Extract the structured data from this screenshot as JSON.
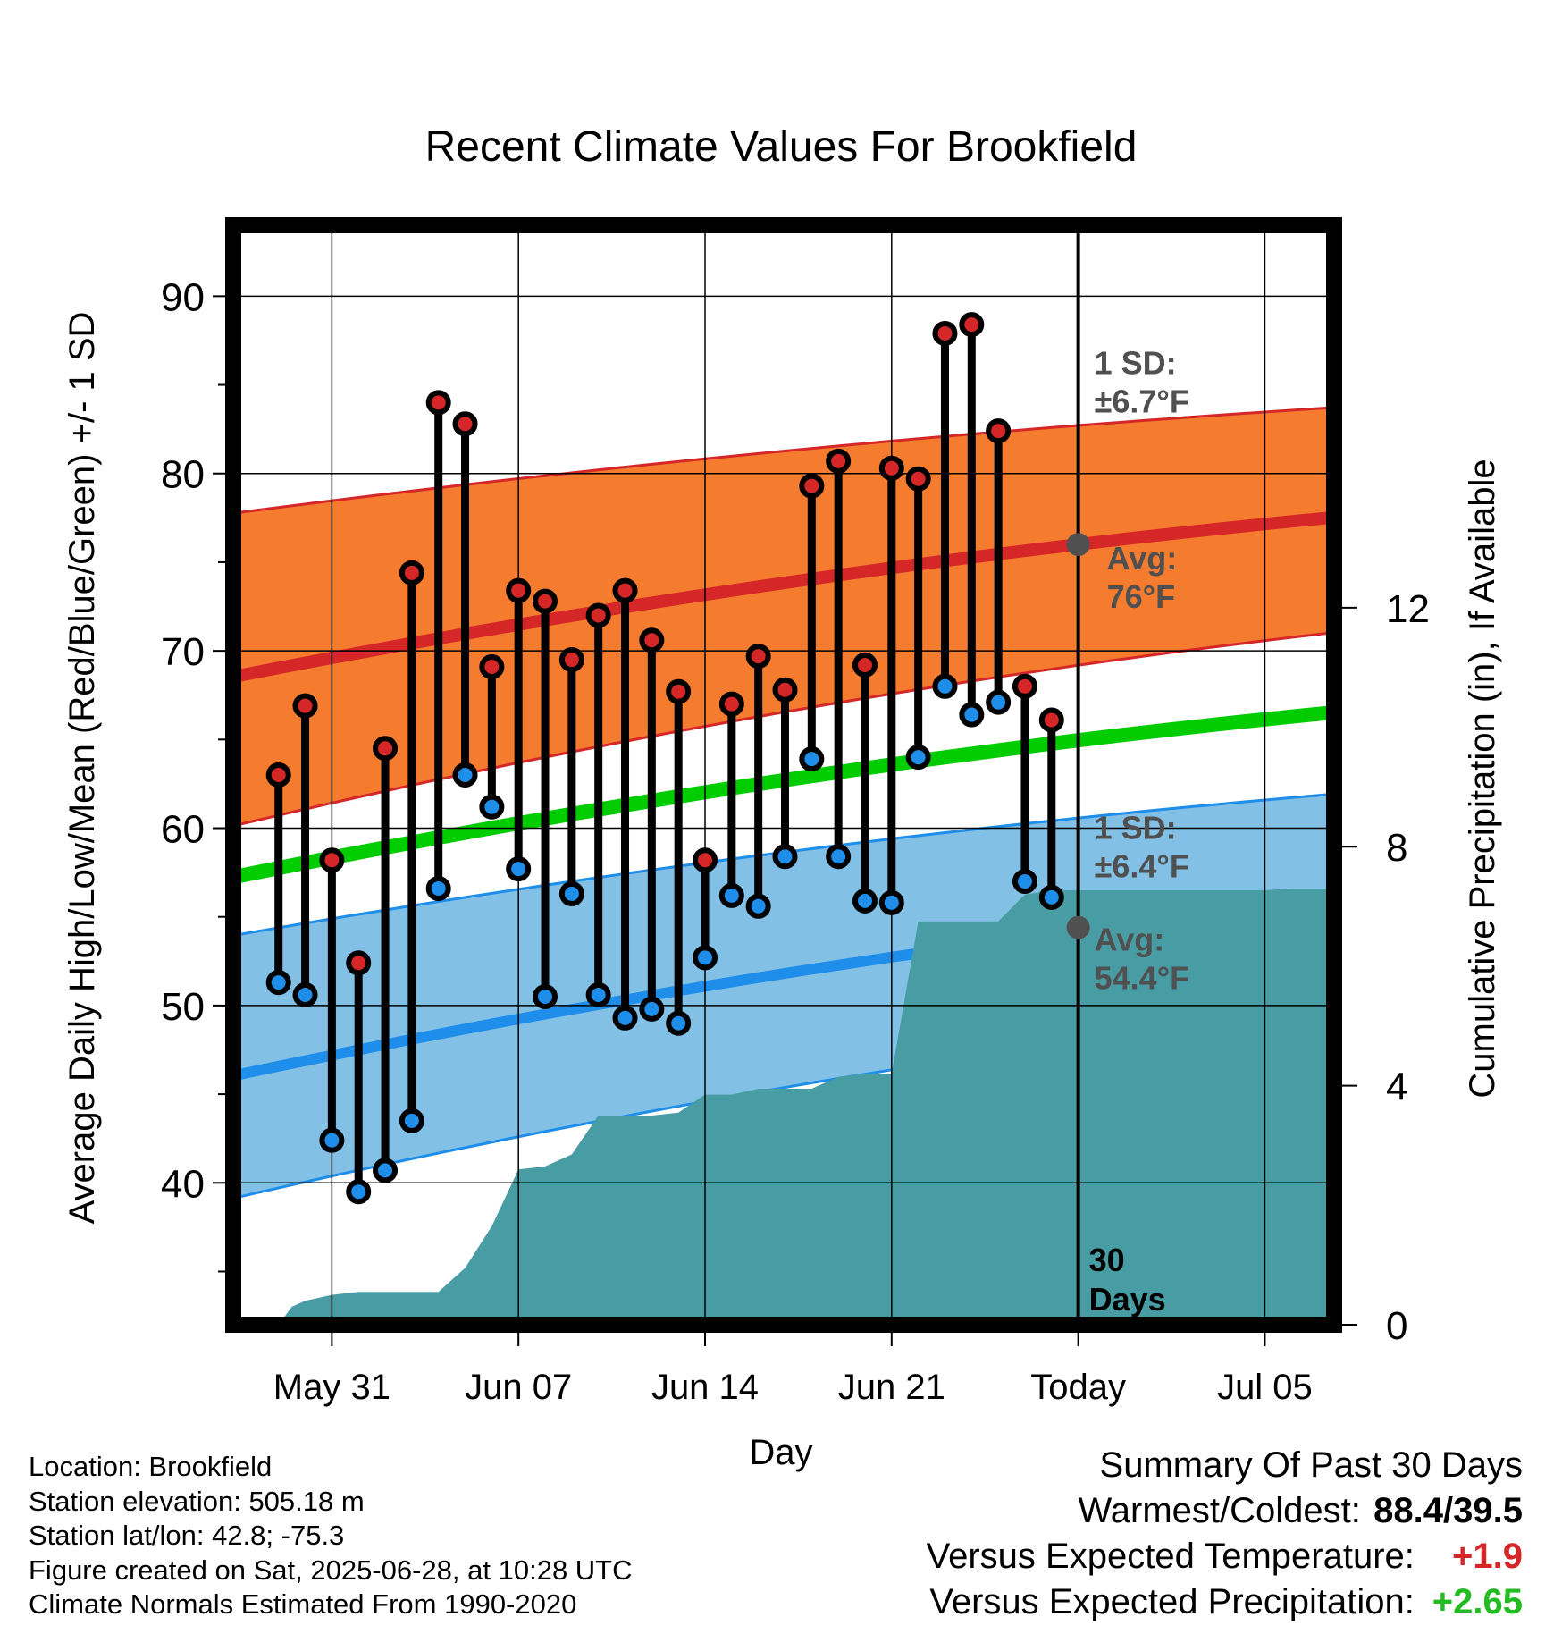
{
  "chart_data": {
    "type": "line",
    "title": "Recent Climate Values For Brookfield",
    "xlabel": "Day",
    "ylabel": "Average Daily High/Low/Mean (Red/Blue/Green) +/- 1 SD",
    "y2label": "Cumulative Precipitation (in), If Available",
    "ylim": [
      32,
      94
    ],
    "y2lim": [
      0,
      18.4
    ],
    "y_ticks": [
      40,
      50,
      60,
      70,
      80,
      90
    ],
    "y2_ticks": [
      0,
      4,
      8,
      12
    ],
    "x_tick_labels": [
      "May 31",
      "Jun 07",
      "Jun 14",
      "Jun 21",
      "Today",
      "Jul 05"
    ],
    "x_tick_days": [
      31,
      38,
      45,
      52,
      59,
      66
    ],
    "xlim": [
      27.3,
      68.6
    ],
    "grid": true,
    "days": [
      29,
      30,
      31,
      32,
      33,
      34,
      35,
      36,
      37,
      38,
      39,
      40,
      41,
      42,
      43,
      44,
      45,
      46,
      47,
      48,
      49,
      50,
      51,
      52,
      53,
      54,
      55,
      56,
      57,
      58
    ],
    "highs": [
      63.0,
      66.9,
      58.2,
      52.4,
      64.5,
      74.4,
      84.0,
      82.8,
      69.1,
      73.4,
      72.8,
      69.5,
      72.0,
      73.4,
      70.6,
      67.7,
      58.2,
      67.0,
      69.7,
      67.8,
      79.3,
      80.7,
      69.2,
      80.3,
      79.7,
      87.9,
      88.4,
      82.4,
      68.0,
      66.1
    ],
    "lows": [
      51.3,
      50.6,
      42.4,
      39.5,
      40.7,
      43.5,
      56.6,
      63.0,
      61.2,
      57.7,
      50.5,
      56.3,
      50.6,
      49.3,
      49.8,
      49.0,
      52.7,
      56.2,
      55.6,
      58.4,
      63.9,
      58.4,
      55.9,
      55.8,
      64.0,
      68.0,
      66.4,
      67.1,
      57.0,
      56.1
    ],
    "normals": {
      "x": [
        27.5,
        68.4
      ],
      "high_avg": [
        68.6,
        77.5
      ],
      "high_sd_upper": [
        77.8,
        83.7
      ],
      "high_sd_lower": [
        60.2,
        71.0
      ],
      "mean": [
        57.3,
        66.5
      ],
      "low_avg": [
        46.1,
        55.8
      ],
      "low_sd_upper": [
        54.0,
        61.9
      ],
      "low_sd_lower": [
        39.2,
        49.7
      ]
    },
    "precip": {
      "x": [
        28.5,
        29.0,
        29.5,
        30.0,
        31.0,
        32.0,
        33.0,
        34.0,
        35.0,
        36.0,
        37.0,
        38.0,
        39.0,
        40.0,
        41.0,
        42.0,
        43.0,
        44.0,
        45.0,
        46.0,
        47.0,
        48.0,
        49.0,
        50.0,
        51.0,
        52.0,
        53.0,
        54.0,
        55.0,
        56.0,
        57.0,
        58.0,
        59.0,
        60.0,
        61.0,
        62.0,
        63.0,
        64.0,
        65.0,
        66.0,
        67.0,
        68.4
      ],
      "values": [
        0,
        0,
        0.3,
        0.4,
        0.5,
        0.55,
        0.55,
        0.55,
        0.55,
        0.95,
        1.65,
        2.6,
        2.65,
        2.85,
        3.5,
        3.5,
        3.5,
        3.55,
        3.85,
        3.85,
        3.95,
        3.95,
        3.95,
        4.15,
        4.2,
        4.2,
        6.75,
        6.75,
        6.75,
        6.75,
        7.2,
        7.27,
        7.27,
        7.27,
        7.27,
        7.27,
        7.27,
        7.27,
        7.27,
        7.27,
        7.3,
        7.3
      ]
    },
    "today_day": 59,
    "today_label": "30\nDays",
    "annotations": {
      "high_sd": "1 SD:\n±6.7°F",
      "high_avg": "Avg:\n76°F",
      "low_sd": "1 SD:\n±6.4°F",
      "low_avg": "Avg:\n54.4°F",
      "today_high_avg": 76.0,
      "today_low_avg": 54.4
    },
    "colors": {
      "high_band": "#f57b2f",
      "high_line": "#d62728",
      "mean_line": "#00cc00",
      "low_band": "#82c0e6",
      "low_line": "#1e8eea",
      "precip": "#489da5",
      "high_marker": "#d62728",
      "low_marker": "#1e8eea",
      "annotation_text": "#505050"
    }
  },
  "info": {
    "location": "Location: Brookfield",
    "elevation": "Station elevation: 505.18 m",
    "latlon": "Station lat/lon: 42.8; -75.3",
    "created": "Figure created on Sat, 2025-06-28, at 10:28 UTC",
    "normals": "Climate Normals Estimated From 1990-2020"
  },
  "summary": {
    "title": "Summary Of Past 30 Days",
    "warm_cold_label": "Warmest/Coldest:",
    "warm_cold_value": "88.4/39.5",
    "temp_label": "Versus Expected Temperature:",
    "temp_value": "+1.9",
    "precip_label": "Versus Expected Precipitation:",
    "precip_value": "+2.65"
  }
}
